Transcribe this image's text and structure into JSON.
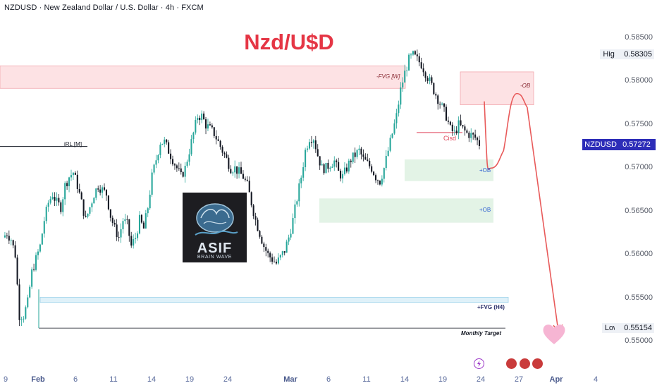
{
  "header": {
    "text": "NZDUSD · New Zealand Dollar / U.S. Dollar · 4h · FXCM"
  },
  "logo": {
    "text": "ASIF",
    "subtext": "BRAIN WAVE"
  },
  "high_label": "High",
  "low_label": "Low",
  "symbol_badge": {
    "label": "NZDUSD",
    "value": "0.57272"
  },
  "colors": {
    "bull": "#26a69a",
    "bear": "#131722",
    "title": "#e53645",
    "bear_zone": "#fde2e4",
    "bull_zone": "#e3f3e6",
    "fvg_zone": "#dff1f9",
    "projection": "#e85a5a"
  },
  "chart_data": {
    "type": "line",
    "title": "Nzd/U$D",
    "y_axis": {
      "ticks": [
        "0.58500",
        "0.58000",
        "0.57500",
        "0.57000",
        "0.56500",
        "0.56000",
        "0.55500",
        "0.55000"
      ],
      "ylim": [
        0.5495,
        0.586
      ]
    },
    "x_axis": {
      "ticks": [
        "9",
        "Feb",
        "6",
        "11",
        "14",
        "19",
        "24",
        "Mar",
        "6",
        "11",
        "14",
        "19",
        "24",
        "27",
        "Apr",
        "4"
      ]
    },
    "high": "0.58305",
    "low": "0.55154",
    "last_price": "0.57272",
    "zones": [
      {
        "label": "-FVG [W]",
        "kind": "bearish",
        "from": 0.5792,
        "to": 0.5818
      },
      {
        "label": "-OB",
        "kind": "bearish",
        "from": 0.5773,
        "to": 0.5811
      },
      {
        "label": "+OB",
        "kind": "bullish",
        "from": 0.5685,
        "to": 0.571
      },
      {
        "label": "+OB",
        "kind": "bullish",
        "from": 0.5637,
        "to": 0.5665
      },
      {
        "label": "+FVG (H4)",
        "kind": "fvg",
        "from": 0.5545,
        "to": 0.5551
      }
    ],
    "levels": [
      {
        "label": "iRL [M]",
        "price": 0.5725
      },
      {
        "label": "Cisd",
        "price": 0.5741
      },
      {
        "label": "Monthly Target",
        "price": 0.55154
      }
    ],
    "price_path": [
      0.562,
      0.5625,
      0.5618,
      0.56,
      0.553,
      0.553,
      0.5545,
      0.558,
      0.5595,
      0.561,
      0.564,
      0.566,
      0.567,
      0.566,
      0.5655,
      0.568,
      0.569,
      0.5695,
      0.568,
      0.566,
      0.564,
      0.5655,
      0.567,
      0.568,
      0.5675,
      0.567,
      0.5645,
      0.563,
      0.562,
      0.564,
      0.5635,
      0.561,
      0.562,
      0.564,
      0.563,
      0.5655,
      0.569,
      0.571,
      0.573,
      0.573,
      0.572,
      0.571,
      0.57,
      0.569,
      0.57,
      0.572,
      0.574,
      0.576,
      0.576,
      0.575,
      0.5745,
      0.574,
      0.573,
      0.572,
      0.571,
      0.57,
      0.57,
      0.5695,
      0.569,
      0.568,
      0.566,
      0.564,
      0.5625,
      0.561,
      0.56,
      0.5595,
      0.559,
      0.5597,
      0.5605,
      0.562,
      0.564,
      0.5665,
      0.569,
      0.572,
      0.5735,
      0.5735,
      0.5715,
      0.57,
      0.57,
      0.5705,
      0.5708,
      0.5695,
      0.569,
      0.57,
      0.571,
      0.5715,
      0.572,
      0.571,
      0.5705,
      0.57,
      0.569,
      0.5685,
      0.57,
      0.572,
      0.574,
      0.576,
      0.579,
      0.581,
      0.5825,
      0.583,
      0.5825,
      0.582,
      0.581,
      0.58,
      0.579,
      0.578,
      0.577,
      0.576,
      0.5745,
      0.574,
      0.575,
      0.5745,
      0.574,
      0.5738,
      0.5735,
      0.5728
    ],
    "projection": [
      [
        0,
        0.5777
      ],
      [
        0.45,
        0.57
      ],
      [
        1.3,
        0.572
      ],
      [
        2.2,
        0.5786
      ],
      [
        2.9,
        0.577
      ],
      [
        4.2,
        0.553
      ],
      [
        5.0,
        0.5512
      ]
    ]
  }
}
